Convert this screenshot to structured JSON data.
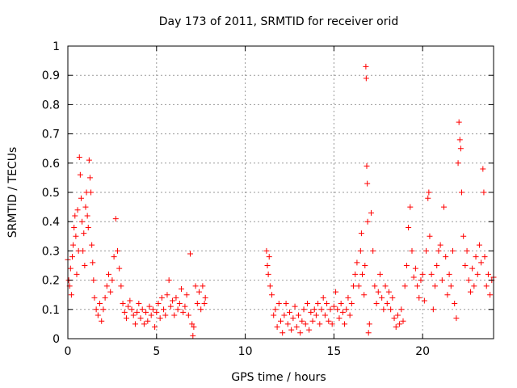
{
  "chart_data": {
    "type": "scatter",
    "title": "Day 173 of 2011, SRMTID for receiver orid",
    "xlabel": "GPS time / hours",
    "ylabel": "SRMTID / TECUs",
    "xlim": [
      0,
      24
    ],
    "ylim": [
      0,
      1
    ],
    "xticks": [
      0,
      5,
      10,
      15,
      20
    ],
    "xtick_labels": [
      "0",
      "5",
      "10",
      "15",
      "20"
    ],
    "yticks": [
      0,
      0.1,
      0.2,
      0.3,
      0.4,
      0.5,
      0.6,
      0.7,
      0.8,
      0.9,
      1
    ],
    "ytick_labels": [
      "0",
      "0.1",
      "0.2",
      "0.3",
      "0.4",
      "0.5",
      "0.6",
      "0.7",
      "0.8",
      "0.9",
      "1"
    ],
    "grid": true,
    "marker": "+",
    "series": [
      {
        "name": "SRMTID",
        "color": "#ff0000",
        "points": [
          [
            0.0,
            0.27
          ],
          [
            0.05,
            0.2
          ],
          [
            0.1,
            0.18
          ],
          [
            0.15,
            0.24
          ],
          [
            0.2,
            0.15
          ],
          [
            0.25,
            0.28
          ],
          [
            0.3,
            0.32
          ],
          [
            0.35,
            0.38
          ],
          [
            0.4,
            0.42
          ],
          [
            0.45,
            0.35
          ],
          [
            0.5,
            0.22
          ],
          [
            0.55,
            0.44
          ],
          [
            0.6,
            0.3
          ],
          [
            0.65,
            0.62
          ],
          [
            0.7,
            0.56
          ],
          [
            0.75,
            0.48
          ],
          [
            0.8,
            0.4
          ],
          [
            0.85,
            0.3
          ],
          [
            0.9,
            0.36
          ],
          [
            0.95,
            0.25
          ],
          [
            1.0,
            0.45
          ],
          [
            1.05,
            0.5
          ],
          [
            1.1,
            0.42
          ],
          [
            1.15,
            0.38
          ],
          [
            1.2,
            0.61
          ],
          [
            1.25,
            0.55
          ],
          [
            1.3,
            0.5
          ],
          [
            1.35,
            0.32
          ],
          [
            1.4,
            0.26
          ],
          [
            1.45,
            0.2
          ],
          [
            1.5,
            0.14
          ],
          [
            1.6,
            0.1
          ],
          [
            1.7,
            0.08
          ],
          [
            1.8,
            0.12
          ],
          [
            1.9,
            0.06
          ],
          [
            2.0,
            0.1
          ],
          [
            2.1,
            0.14
          ],
          [
            2.2,
            0.18
          ],
          [
            2.3,
            0.22
          ],
          [
            2.4,
            0.16
          ],
          [
            2.5,
            0.2
          ],
          [
            2.6,
            0.28
          ],
          [
            2.7,
            0.41
          ],
          [
            2.8,
            0.3
          ],
          [
            2.9,
            0.24
          ],
          [
            3.0,
            0.18
          ],
          [
            3.1,
            0.12
          ],
          [
            3.2,
            0.09
          ],
          [
            3.3,
            0.07
          ],
          [
            3.4,
            0.11
          ],
          [
            3.5,
            0.13
          ],
          [
            3.6,
            0.1
          ],
          [
            3.7,
            0.08
          ],
          [
            3.8,
            0.05
          ],
          [
            3.9,
            0.09
          ],
          [
            4.0,
            0.12
          ],
          [
            4.1,
            0.07
          ],
          [
            4.2,
            0.1
          ],
          [
            4.3,
            0.05
          ],
          [
            4.4,
            0.09
          ],
          [
            4.5,
            0.06
          ],
          [
            4.6,
            0.11
          ],
          [
            4.7,
            0.08
          ],
          [
            4.8,
            0.1
          ],
          [
            4.9,
            0.04
          ],
          [
            5.0,
            0.09
          ],
          [
            5.1,
            0.12
          ],
          [
            5.2,
            0.07
          ],
          [
            5.3,
            0.14
          ],
          [
            5.4,
            0.1
          ],
          [
            5.5,
            0.08
          ],
          [
            5.6,
            0.15
          ],
          [
            5.7,
            0.2
          ],
          [
            5.8,
            0.11
          ],
          [
            5.9,
            0.13
          ],
          [
            6.0,
            0.08
          ],
          [
            6.1,
            0.14
          ],
          [
            6.2,
            0.1
          ],
          [
            6.3,
            0.12
          ],
          [
            6.4,
            0.17
          ],
          [
            6.5,
            0.09
          ],
          [
            6.6,
            0.11
          ],
          [
            6.7,
            0.15
          ],
          [
            6.8,
            0.08
          ],
          [
            6.9,
            0.29
          ],
          [
            7.0,
            0.05
          ],
          [
            7.05,
            0.01
          ],
          [
            7.1,
            0.04
          ],
          [
            7.2,
            0.18
          ],
          [
            7.3,
            0.12
          ],
          [
            7.4,
            0.16
          ],
          [
            7.5,
            0.1
          ],
          [
            7.6,
            0.18
          ],
          [
            7.7,
            0.12
          ],
          [
            7.75,
            0.14
          ],
          [
            11.2,
            0.3
          ],
          [
            11.25,
            0.25
          ],
          [
            11.3,
            0.22
          ],
          [
            11.35,
            0.28
          ],
          [
            11.4,
            0.18
          ],
          [
            11.5,
            0.15
          ],
          [
            11.6,
            0.08
          ],
          [
            11.7,
            0.1
          ],
          [
            11.8,
            0.04
          ],
          [
            11.9,
            0.12
          ],
          [
            12.0,
            0.06
          ],
          [
            12.1,
            0.02
          ],
          [
            12.2,
            0.08
          ],
          [
            12.3,
            0.12
          ],
          [
            12.4,
            0.05
          ],
          [
            12.5,
            0.09
          ],
          [
            12.6,
            0.03
          ],
          [
            12.7,
            0.07
          ],
          [
            12.8,
            0.11
          ],
          [
            12.9,
            0.04
          ],
          [
            13.0,
            0.08
          ],
          [
            13.1,
            0.02
          ],
          [
            13.2,
            0.06
          ],
          [
            13.3,
            0.1
          ],
          [
            13.4,
            0.05
          ],
          [
            13.5,
            0.12
          ],
          [
            13.6,
            0.03
          ],
          [
            13.7,
            0.09
          ],
          [
            13.8,
            0.06
          ],
          [
            13.9,
            0.1
          ],
          [
            14.0,
            0.08
          ],
          [
            14.1,
            0.12
          ],
          [
            14.2,
            0.05
          ],
          [
            14.3,
            0.1
          ],
          [
            14.4,
            0.14
          ],
          [
            14.5,
            0.08
          ],
          [
            14.6,
            0.12
          ],
          [
            14.7,
            0.06
          ],
          [
            14.8,
            0.1
          ],
          [
            14.9,
            0.05
          ],
          [
            15.0,
            0.11
          ],
          [
            15.1,
            0.16
          ],
          [
            15.2,
            0.1
          ],
          [
            15.3,
            0.07
          ],
          [
            15.4,
            0.12
          ],
          [
            15.5,
            0.09
          ],
          [
            15.6,
            0.05
          ],
          [
            15.7,
            0.1
          ],
          [
            15.8,
            0.14
          ],
          [
            15.9,
            0.08
          ],
          [
            16.0,
            0.12
          ],
          [
            16.1,
            0.18
          ],
          [
            16.2,
            0.22
          ],
          [
            16.3,
            0.26
          ],
          [
            16.4,
            0.18
          ],
          [
            16.5,
            0.3
          ],
          [
            16.55,
            0.36
          ],
          [
            16.6,
            0.22
          ],
          [
            16.7,
            0.15
          ],
          [
            16.75,
            0.25
          ],
          [
            16.8,
            0.93
          ],
          [
            16.82,
            0.89
          ],
          [
            16.85,
            0.59
          ],
          [
            16.88,
            0.53
          ],
          [
            16.9,
            0.4
          ],
          [
            16.95,
            0.02
          ],
          [
            17.0,
            0.05
          ],
          [
            17.1,
            0.43
          ],
          [
            17.2,
            0.3
          ],
          [
            17.3,
            0.18
          ],
          [
            17.4,
            0.12
          ],
          [
            17.5,
            0.16
          ],
          [
            17.6,
            0.22
          ],
          [
            17.7,
            0.14
          ],
          [
            17.8,
            0.1
          ],
          [
            17.9,
            0.18
          ],
          [
            18.0,
            0.12
          ],
          [
            18.1,
            0.16
          ],
          [
            18.2,
            0.1
          ],
          [
            18.3,
            0.14
          ],
          [
            18.4,
            0.07
          ],
          [
            18.5,
            0.04
          ],
          [
            18.6,
            0.08
          ],
          [
            18.7,
            0.05
          ],
          [
            18.8,
            0.1
          ],
          [
            18.9,
            0.06
          ],
          [
            19.0,
            0.18
          ],
          [
            19.1,
            0.25
          ],
          [
            19.2,
            0.38
          ],
          [
            19.3,
            0.45
          ],
          [
            19.4,
            0.3
          ],
          [
            19.5,
            0.21
          ],
          [
            19.6,
            0.24
          ],
          [
            19.7,
            0.18
          ],
          [
            19.8,
            0.14
          ],
          [
            19.9,
            0.2
          ],
          [
            20.0,
            0.22
          ],
          [
            20.1,
            0.13
          ],
          [
            20.2,
            0.3
          ],
          [
            20.3,
            0.48
          ],
          [
            20.35,
            0.5
          ],
          [
            20.4,
            0.35
          ],
          [
            20.5,
            0.22
          ],
          [
            20.6,
            0.1
          ],
          [
            20.7,
            0.18
          ],
          [
            20.8,
            0.25
          ],
          [
            20.9,
            0.3
          ],
          [
            21.0,
            0.32
          ],
          [
            21.1,
            0.2
          ],
          [
            21.2,
            0.45
          ],
          [
            21.3,
            0.28
          ],
          [
            21.4,
            0.15
          ],
          [
            21.5,
            0.22
          ],
          [
            21.6,
            0.18
          ],
          [
            21.7,
            0.3
          ],
          [
            21.8,
            0.12
          ],
          [
            21.9,
            0.07
          ],
          [
            22.0,
            0.6
          ],
          [
            22.05,
            0.74
          ],
          [
            22.1,
            0.68
          ],
          [
            22.15,
            0.65
          ],
          [
            22.2,
            0.5
          ],
          [
            22.3,
            0.35
          ],
          [
            22.4,
            0.25
          ],
          [
            22.5,
            0.3
          ],
          [
            22.6,
            0.2
          ],
          [
            22.7,
            0.16
          ],
          [
            22.8,
            0.24
          ],
          [
            22.9,
            0.18
          ],
          [
            23.0,
            0.28
          ],
          [
            23.1,
            0.22
          ],
          [
            23.2,
            0.32
          ],
          [
            23.3,
            0.26
          ],
          [
            23.4,
            0.58
          ],
          [
            23.45,
            0.5
          ],
          [
            23.5,
            0.28
          ],
          [
            23.6,
            0.18
          ],
          [
            23.7,
            0.22
          ],
          [
            23.8,
            0.15
          ],
          [
            23.9,
            0.2
          ],
          [
            24.0,
            0.21
          ]
        ]
      }
    ]
  }
}
